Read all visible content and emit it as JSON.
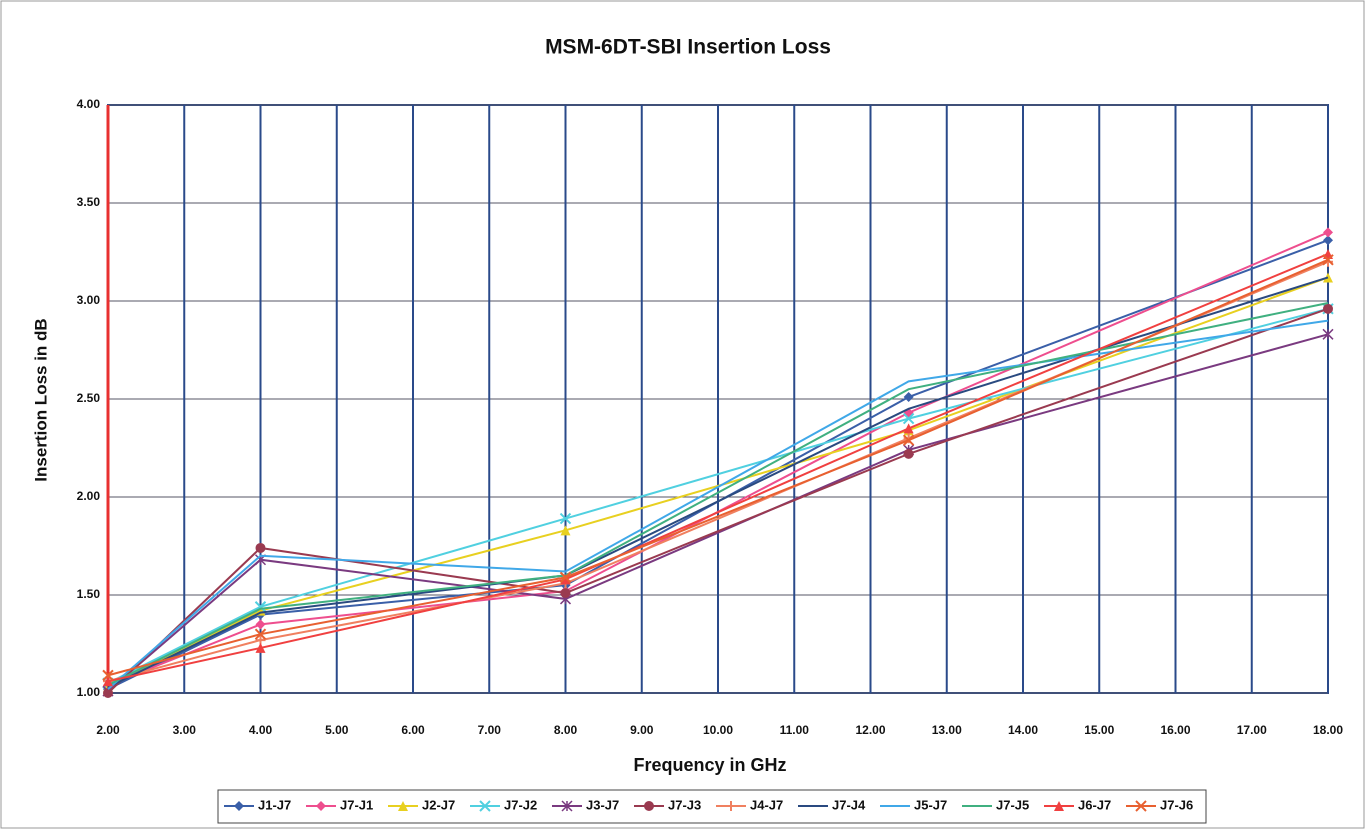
{
  "chart_data": {
    "type": "line",
    "title": "MSM-6DT-SBI Insertion Loss",
    "x_label": "Frequency in GHz",
    "y_label": "Insertion Loss in dB",
    "x": [
      2,
      4,
      8,
      12.5,
      18
    ],
    "series": [
      {
        "name": "J1-J7",
        "color": "#3a5fa8",
        "marker": "diamond",
        "values": [
          1.02,
          1.4,
          1.55,
          2.51,
          3.31
        ]
      },
      {
        "name": "J7-J1",
        "color": "#ee4e8e",
        "marker": "diamond",
        "values": [
          1.04,
          1.35,
          1.52,
          2.43,
          3.35
        ]
      },
      {
        "name": "J2-J7",
        "color": "#e8d020",
        "marker": "triangle",
        "values": [
          1.03,
          1.42,
          1.83,
          2.34,
          3.12
        ]
      },
      {
        "name": "J7-J2",
        "color": "#50d0e0",
        "marker": "x",
        "values": [
          1.05,
          1.44,
          1.89,
          2.4,
          2.96
        ]
      },
      {
        "name": "J3-J7",
        "color": "#7a3a80",
        "marker": "star",
        "values": [
          1.01,
          1.68,
          1.48,
          2.24,
          2.83
        ]
      },
      {
        "name": "J7-J3",
        "color": "#9a3a50",
        "marker": "circle",
        "values": [
          1.0,
          1.74,
          1.51,
          2.22,
          2.96
        ]
      },
      {
        "name": "J4-J7",
        "color": "#f08060",
        "marker": "plus",
        "values": [
          1.06,
          1.27,
          1.56,
          2.3,
          3.2
        ]
      },
      {
        "name": "J7-J4",
        "color": "#2a4a80",
        "marker": "none",
        "values": [
          1.03,
          1.41,
          1.6,
          2.45,
          3.12
        ]
      },
      {
        "name": "J5-J7",
        "color": "#40a8e8",
        "marker": "none",
        "values": [
          1.02,
          1.7,
          1.62,
          2.59,
          2.9
        ]
      },
      {
        "name": "J7-J5",
        "color": "#40b080",
        "marker": "none",
        "values": [
          1.04,
          1.43,
          1.6,
          2.55,
          2.99
        ]
      },
      {
        "name": "J6-J7",
        "color": "#f04040",
        "marker": "triangle",
        "values": [
          1.06,
          1.23,
          1.58,
          2.35,
          3.24
        ]
      },
      {
        "name": "J7-J6",
        "color": "#e86030",
        "marker": "x",
        "values": [
          1.09,
          1.3,
          1.59,
          2.29,
          3.21
        ]
      }
    ],
    "xlim": [
      2,
      18
    ],
    "ylim": [
      1,
      4
    ],
    "xticks": [
      {
        "value": 2,
        "label": "2.00"
      },
      {
        "value": 3,
        "label": "3.00"
      },
      {
        "value": 4,
        "label": "4.00"
      },
      {
        "value": 5,
        "label": "5.00"
      },
      {
        "value": 6,
        "label": "6.00"
      },
      {
        "value": 7,
        "label": "7.00"
      },
      {
        "value": 8,
        "label": "8.00"
      },
      {
        "value": 9,
        "label": "9.00"
      },
      {
        "value": 10,
        "label": "10.00"
      },
      {
        "value": 11,
        "label": "11.00"
      },
      {
        "value": 12,
        "label": "12.00"
      },
      {
        "value": 13,
        "label": "13.00"
      },
      {
        "value": 14,
        "label": "14.00"
      },
      {
        "value": 15,
        "label": "15.00"
      },
      {
        "value": 16,
        "label": "16.00"
      },
      {
        "value": 17,
        "label": "17.00"
      },
      {
        "value": 18,
        "label": "18.00"
      }
    ],
    "yticks": [
      {
        "value": 1,
        "label": "1.00"
      },
      {
        "value": 1.5,
        "label": "1.50"
      },
      {
        "value": 2,
        "label": "2.00"
      },
      {
        "value": 2.5,
        "label": "2.50"
      },
      {
        "value": 3,
        "label": "3.00"
      },
      {
        "value": 3.5,
        "label": "3.50"
      },
      {
        "value": 4,
        "label": "4.00"
      }
    ],
    "grid": true,
    "legend": "bottom"
  }
}
